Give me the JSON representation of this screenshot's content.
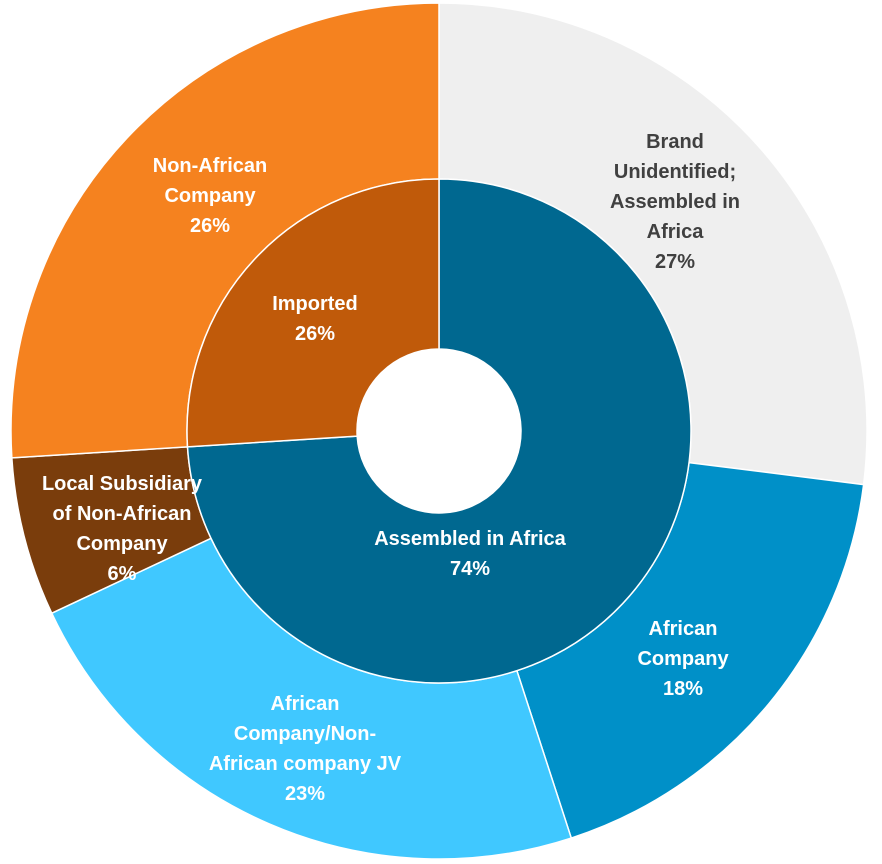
{
  "chart_data": {
    "type": "pie",
    "variant": "double-donut (sunburst)",
    "inner_ring": [
      {
        "label": "Assembled in Africa",
        "value": 74,
        "color": "#006890"
      },
      {
        "label": "Imported",
        "value": 26,
        "color": "#C05A0A"
      }
    ],
    "outer_ring": [
      {
        "label": "Brand Unidentified; Assembled in Africa",
        "value": 27,
        "color": "#EFEFEF",
        "parent": "Assembled in Africa"
      },
      {
        "label": "African Company",
        "value": 18,
        "color": "#0090C8",
        "parent": "Assembled in Africa"
      },
      {
        "label": "African Company/Non-African company JV",
        "value": 23,
        "color": "#40C8FF",
        "parent": "Assembled in Africa"
      },
      {
        "label": "Local Subsidiary of Non-African Company",
        "value": 6,
        "color": "#7A3D0C",
        "parent": "Assembled in Africa"
      },
      {
        "label": "Non-African Company",
        "value": 26,
        "color": "#F5821F",
        "parent": "Imported"
      }
    ],
    "labels": {
      "assembled": {
        "lines": [
          "Assembled in Africa"
        ],
        "pct": "74%"
      },
      "imported": {
        "lines": [
          "Imported"
        ],
        "pct": "26%"
      },
      "brand_unidentified": {
        "lines": [
          "Brand",
          "Unidentified;",
          "Assembled in",
          "Africa"
        ],
        "pct": "27%"
      },
      "african_company": {
        "lines": [
          "African",
          "Company"
        ],
        "pct": "18%"
      },
      "jv": {
        "lines": [
          "African",
          "Company/Non-",
          "African company JV"
        ],
        "pct": "23%"
      },
      "local_subsidiary": {
        "lines": [
          "Local Subsidiary",
          "of Non-African",
          "Company"
        ],
        "pct": "6%"
      },
      "non_african": {
        "lines": [
          "Non-African",
          "Company"
        ],
        "pct": "26%"
      }
    },
    "start_angle": "12 o'clock",
    "direction": "clockwise",
    "legend": "none"
  }
}
